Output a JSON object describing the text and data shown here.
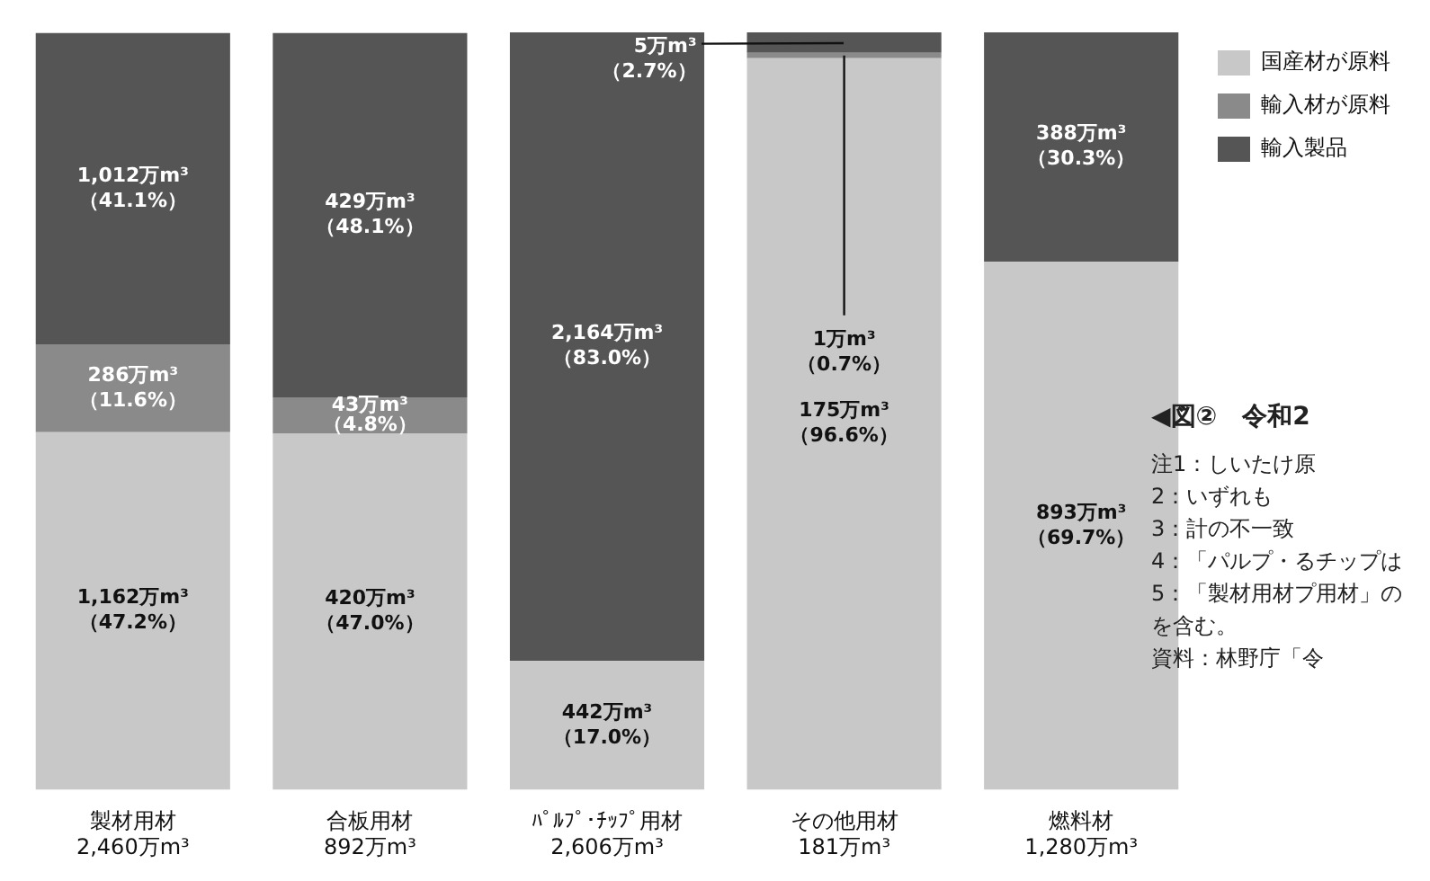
{
  "chart_data": {
    "type": "bar",
    "stacked": true,
    "legend": "top right",
    "categories": [
      "製材用材\n2,460万m³",
      "合板用材\n892万m³",
      "ﾊﾟﾙﾌﾟ･ﾁｯﾌﾟ用材\n2,606万m³",
      "その他用材\n181万m³",
      "燃料材\n1,280万m³"
    ],
    "series": [
      {
        "name": "国産材が原料",
        "color": "#c8c8c8",
        "values": [
          47.2,
          47.0,
          17.0,
          96.6,
          69.7
        ],
        "value_labels": [
          "1,162万m³\n（47.2%）",
          "420万m³\n（47.0%）",
          "442万m³\n（17.0%）",
          "175万m³\n（96.6%）",
          "893万m³\n（69.7%）"
        ]
      },
      {
        "name": "輸入材が原料",
        "color": "#8a8a8a",
        "values": [
          11.6,
          4.8,
          null,
          0.7,
          null
        ],
        "value_labels": [
          "286万m³\n（11.6%）",
          "43万m³\n（4.8%）",
          null,
          "1万m³\n（0.7%）",
          null
        ]
      },
      {
        "name": "輸入製品",
        "color": "#555555",
        "values": [
          41.1,
          48.1,
          83.0,
          2.7,
          30.3
        ],
        "value_labels": [
          "1,012万m³\n（41.1%）",
          "429万m³\n（48.1%）",
          "2,164万m³\n（83.0%）",
          "5万m³\n（2.7%）",
          "388万m³\n（30.3%）"
        ]
      }
    ],
    "annotations": [
      "◀図②　令和2",
      "注1：しいたけ原",
      "2：いずれも",
      "3：計の不一致",
      "4：「パルプ・るチップは",
      "5：「製材用材プ用材」のを含む。",
      "資料：林野庁「令"
    ]
  }
}
